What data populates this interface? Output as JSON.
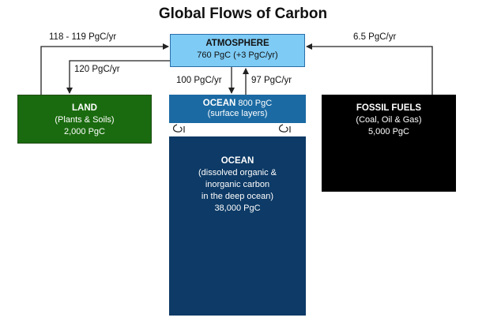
{
  "title": "Global Flows of Carbon",
  "colors": {
    "atmosphere": "#7ecbf5",
    "land": "#1a6b0f",
    "ocean_surface": "#1b6aa3",
    "ocean_deep": "#0d3a66",
    "fossil": "#000000"
  },
  "boxes": {
    "atmosphere": {
      "name": "ATMOSPHERE",
      "detail": "760 PgC  (+3 PgC/yr)"
    },
    "land": {
      "name": "LAND",
      "detail": "(Plants & Soils)",
      "amount": "2,000 PgC"
    },
    "ocean_surface": {
      "name": "OCEAN",
      "amount": "800 PgC",
      "detail": "(surface layers)"
    },
    "ocean_deep": {
      "name": "OCEAN",
      "lines": [
        "(dissolved organic &",
        "inorganic carbon",
        "in the deep ocean)"
      ],
      "amount": "38,000 PgC"
    },
    "fossil": {
      "name": "FOSSIL FUELS",
      "detail": "(Coal, Oil & Gas)",
      "amount": "5,000 PgC"
    }
  },
  "flows": {
    "land_to_atmosphere": "118 - 119 PgC/yr",
    "atmosphere_to_land": "120 PgC/yr",
    "atmosphere_to_ocean": "100 PgC/yr",
    "ocean_to_atmosphere": "97 PgC/yr",
    "fossil_to_atmosphere": "6.5 PgC/yr"
  }
}
